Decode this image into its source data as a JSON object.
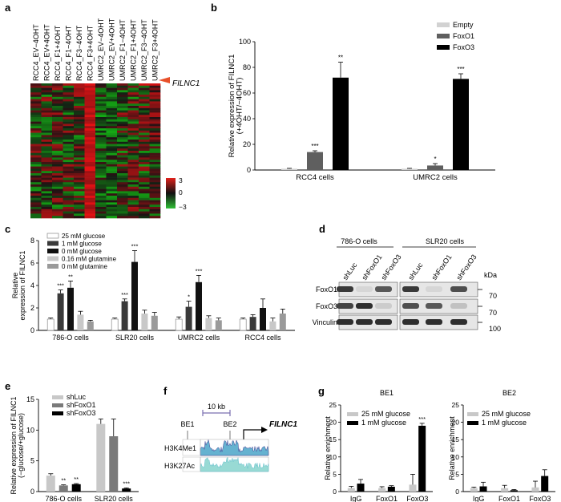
{
  "panels": {
    "a": "a",
    "b": "b",
    "c": "c",
    "d": "d",
    "e": "e",
    "f": "f",
    "g": "g"
  },
  "heatmap": {
    "columns": [
      "RCC4_EV−4OHT",
      "RCC4_EV+4OHT",
      "RCC4_F1+4OHT",
      "RCC4_F1−4OHT",
      "RCC4_F3−4OHT",
      "RCC4_F3+4OHT",
      "UMRC2_EV−4OHT",
      "UMRC2_EV+4OHT",
      "UMRC2_F1−4OHT",
      "UMRC2_F1+4OHT",
      "UMRC2_F3−4OHT",
      "UMRC2_F3+4OHT"
    ],
    "highlight_gene": "FILNC1",
    "scale_labels": [
      "3",
      "0",
      "−3"
    ],
    "colors": {
      "high": "#e0201b",
      "mid": "#111111",
      "low": "#2fbf35",
      "arrow": "#e8502a"
    }
  },
  "colors": {
    "empty": "#d2d2d2",
    "foxo1": "#5f5f5f",
    "foxo3": "#000000",
    "light": "#c8c8c8",
    "mid": "#8a8a8a",
    "dark": "#3a3a3a",
    "white": "#ffffff"
  },
  "chart_data": [
    {
      "id": "b",
      "type": "bar",
      "ylabel": "Relative expression of FILNC1 (+4OHT/−4OHT)",
      "ylim": [
        0,
        100
      ],
      "yticks": [
        0,
        20,
        40,
        60,
        80,
        100
      ],
      "categories": [
        "RCC4 cells",
        "UMRC2 cells"
      ],
      "series": [
        {
          "name": "Empty",
          "values": [
            1,
            1
          ],
          "errors": [
            0.3,
            0.3
          ],
          "sig": [
            "",
            ""
          ]
        },
        {
          "name": "FoxO1",
          "values": [
            14,
            3.5
          ],
          "errors": [
            1,
            1.5
          ],
          "sig": [
            "***",
            "*"
          ]
        },
        {
          "name": "FoxO3",
          "values": [
            72,
            71
          ],
          "errors": [
            12,
            4
          ],
          "sig": [
            "**",
            "***"
          ]
        }
      ]
    },
    {
      "id": "c",
      "type": "bar",
      "ylabel": "Relative expression of FILNC1",
      "ylim": [
        0,
        8
      ],
      "yticks": [
        0,
        2,
        4,
        6,
        8
      ],
      "categories": [
        "786-O cells",
        "SLR20 cells",
        "UMRC2 cells",
        "RCC4 cells"
      ],
      "series": [
        {
          "name": "25 mM glucose",
          "values": [
            1,
            1,
            1,
            1
          ],
          "errors": [
            0.1,
            0.1,
            0.2,
            0.1
          ],
          "sig": [
            "",
            "",
            "",
            ""
          ]
        },
        {
          "name": "1 mM glucose",
          "values": [
            3.3,
            2.6,
            2.1,
            1.2
          ],
          "errors": [
            0.3,
            0.2,
            0.5,
            0.2
          ],
          "sig": [
            "***",
            "***",
            "*",
            ""
          ]
        },
        {
          "name": "0 mM glucose",
          "values": [
            3.8,
            6.1,
            4.3,
            2.0
          ],
          "errors": [
            0.6,
            1.0,
            0.6,
            0.8
          ],
          "sig": [
            "**",
            "***",
            "***",
            ""
          ]
        },
        {
          "name": "0.16 mM glutamine",
          "values": [
            1.4,
            1.5,
            1.1,
            0.8
          ],
          "errors": [
            0.3,
            0.3,
            0.2,
            0.3
          ],
          "sig": [
            "",
            "",
            "",
            ""
          ]
        },
        {
          "name": "0 mM glutamine",
          "values": [
            0.8,
            1.3,
            0.9,
            1.5
          ],
          "errors": [
            0.1,
            0.3,
            0.2,
            0.4
          ],
          "sig": [
            "",
            "",
            "",
            ""
          ]
        }
      ]
    },
    {
      "id": "e",
      "type": "bar",
      "ylabel": "Relative expression of FILNC1 (−glucose/+glucose)",
      "ylim": [
        0,
        15
      ],
      "yticks": [
        0,
        5,
        10,
        15
      ],
      "categories": [
        "786-O cells",
        "SLR20 cells"
      ],
      "series": [
        {
          "name": "shLuc",
          "values": [
            2.6,
            11
          ],
          "errors": [
            0.3,
            0.8
          ],
          "sig": [
            "",
            ""
          ]
        },
        {
          "name": "shFoxO1",
          "values": [
            1.0,
            9
          ],
          "errors": [
            0.1,
            2.8
          ],
          "sig": [
            "**",
            ""
          ]
        },
        {
          "name": "shFoxO3",
          "values": [
            1.2,
            0.5
          ],
          "errors": [
            0.1,
            0.1
          ],
          "sig": [
            "**",
            "***"
          ]
        }
      ]
    },
    {
      "id": "g1",
      "type": "bar",
      "title": "BE1",
      "ylabel": "Relative enrichment",
      "ylim": [
        0,
        25
      ],
      "yticks": [
        0,
        5,
        10,
        15,
        20,
        25
      ],
      "categories": [
        "IgG",
        "FoxO1",
        "FoxO3"
      ],
      "series": [
        {
          "name": "25 mM glucose",
          "values": [
            1,
            1,
            2
          ],
          "errors": [
            0.5,
            0.4,
            3
          ],
          "sig": [
            "",
            "",
            ""
          ]
        },
        {
          "name": "1 mM glucose",
          "values": [
            2.3,
            1.4,
            19
          ],
          "errors": [
            1.2,
            0.3,
            0.7
          ],
          "sig": [
            "",
            "",
            "***"
          ]
        }
      ]
    },
    {
      "id": "g2",
      "type": "bar",
      "title": "BE2",
      "ylabel": "Relative enrichment",
      "ylim": [
        0,
        25
      ],
      "yticks": [
        0,
        5,
        10,
        15,
        20,
        25
      ],
      "categories": [
        "IgG",
        "FoxO1",
        "FoxO3"
      ],
      "series": [
        {
          "name": "25 mM glucose",
          "values": [
            1,
            1,
            1.2
          ],
          "errors": [
            0.3,
            0.8,
            1.8
          ],
          "sig": [
            "",
            "",
            ""
          ]
        },
        {
          "name": "1 mM glucose",
          "values": [
            1.5,
            0.4,
            4.5
          ],
          "errors": [
            1.2,
            0.2,
            1.8
          ],
          "sig": [
            "",
            "",
            ""
          ]
        }
      ]
    }
  ],
  "western": {
    "groups": [
      "786-O cells",
      "SLR20 cells"
    ],
    "lanes": [
      "shLuc",
      "shFoxO1",
      "shFoxO3",
      "shLuc",
      "shFoxO1",
      "shFoxO3"
    ],
    "rows": [
      "FoxO1",
      "FoxO3",
      "Vinculin"
    ],
    "kda_label": "kDa",
    "markers": [
      "70",
      "70",
      "100"
    ]
  },
  "track": {
    "scale_label": "10 kb",
    "elements": [
      "BE1",
      "BE2"
    ],
    "gene": "FILNC1",
    "tracks": [
      "H3K4Me1",
      "H3K27Ac"
    ]
  }
}
